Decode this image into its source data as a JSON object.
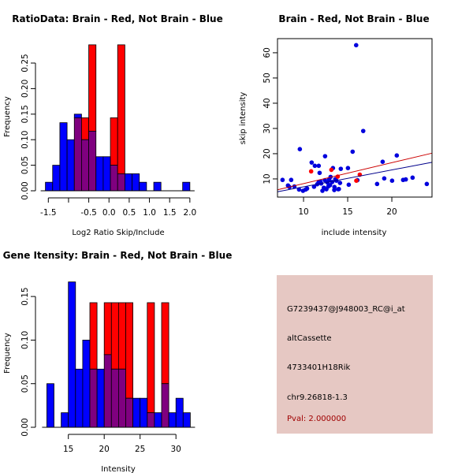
{
  "colors": {
    "brain": "#ff0000",
    "not_brain": "#0000ff",
    "overlap": "#7f007f",
    "pval": "#a00000",
    "panel_bg": "#e6c8c3"
  },
  "chart_data": [
    {
      "type": "bar",
      "id": "ratio-histogram",
      "title": "RatioData: Brain - Red, Not Brain - Blue",
      "xlabel": "Log2 Ratio Skip/Include",
      "ylabel": "Frequency",
      "bin_start": -1.572,
      "bin_width": 0.1786,
      "xlim": [
        -1.572,
        2.0
      ],
      "ylim": [
        0,
        0.286
      ],
      "xticks": [
        -1.5,
        -1.0,
        -0.5,
        0.0,
        0.5,
        1.0,
        1.5,
        2.0
      ],
      "xtick_labels": [
        "-1.5",
        "",
        "-0.5",
        "0.0",
        "0.5",
        "1.0",
        "1.5",
        "2.0"
      ],
      "yticks": [
        0.0,
        0.05,
        0.1,
        0.15,
        0.2,
        0.25
      ],
      "ytick_labels": [
        "0.00",
        "0.05",
        "0.10",
        "0.15",
        "0.20",
        "0.25"
      ],
      "series": [
        {
          "name": "Not Brain",
          "color": "blue",
          "values": [
            0.0167,
            0.05,
            0.1333,
            0.1,
            0.15,
            0.1,
            0.1167,
            0.0667,
            0.0667,
            0.05,
            0.0333,
            0.0333,
            0.0333,
            0.0167,
            0,
            0.0167,
            0,
            0,
            0,
            0.0167
          ]
        },
        {
          "name": "Brain",
          "color": "red",
          "values": [
            0,
            0,
            0,
            0,
            0.1429,
            0.1429,
            0.2857,
            0,
            0,
            0.1429,
            0.2857,
            0,
            0,
            0,
            0,
            0,
            0,
            0,
            0,
            0
          ]
        }
      ],
      "grid": false
    },
    {
      "type": "scatter",
      "id": "intensity-scatter",
      "title": "Brain - Red, Not Brain - Blue",
      "xlabel": "include intensity",
      "ylabel": "skip intensity",
      "xlim": [
        7.05,
        24.55
      ],
      "ylim": [
        2.8,
        65.6
      ],
      "xticks": [
        10,
        15,
        20
      ],
      "yticks": [
        10,
        20,
        30,
        40,
        50,
        60
      ],
      "series": [
        {
          "name": "Not Brain",
          "color": "blue",
          "points": [
            [
              15.96,
              63.0
            ],
            [
              16.76,
              29.0
            ],
            [
              9.58,
              21.8
            ],
            [
              12.44,
              19.0
            ],
            [
              15.56,
              20.8
            ],
            [
              20.56,
              19.3
            ],
            [
              18.96,
              16.8
            ],
            [
              10.92,
              16.5
            ],
            [
              11.28,
              15.2
            ],
            [
              11.72,
              15.2
            ],
            [
              11.82,
              12.4
            ],
            [
              13.33,
              14.3
            ],
            [
              14.22,
              14.0
            ],
            [
              15.03,
              14.3
            ],
            [
              7.62,
              9.6
            ],
            [
              8.6,
              9.6
            ],
            [
              8.24,
              7.4
            ],
            [
              8.96,
              7.0
            ],
            [
              9.49,
              5.8
            ],
            [
              9.94,
              5.3
            ],
            [
              10.24,
              5.8
            ],
            [
              11.19,
              6.9
            ],
            [
              11.55,
              7.9
            ],
            [
              11.72,
              8.75
            ],
            [
              12.14,
              5.3
            ],
            [
              12.59,
              5.9
            ],
            [
              12.41,
              9.5
            ],
            [
              13.06,
              10.8
            ],
            [
              13.24,
              8.75
            ],
            [
              13.48,
              5.6
            ],
            [
              13.93,
              5.9
            ],
            [
              14.13,
              8.4
            ],
            [
              15.12,
              7.7
            ],
            [
              16.1,
              9.5
            ],
            [
              18.33,
              8.0
            ],
            [
              19.14,
              10.2
            ],
            [
              20.03,
              9.3
            ],
            [
              21.28,
              9.6
            ],
            [
              21.58,
              9.8
            ],
            [
              22.35,
              10.5
            ],
            [
              23.96,
              8.0
            ],
            [
              13.72,
              9.3
            ],
            [
              12.8,
              7.0
            ],
            [
              12.0,
              8.2
            ],
            [
              12.3,
              6.5
            ],
            [
              13.0,
              7.5
            ],
            [
              13.5,
              6.8
            ],
            [
              14.0,
              6.0
            ],
            [
              11.9,
              9.0
            ],
            [
              12.9,
              9.8
            ],
            [
              13.6,
              9.9
            ],
            [
              8.4,
              6.8
            ],
            [
              10.4,
              6.2
            ],
            [
              12.7,
              8.6
            ]
          ]
        },
        {
          "name": "Brain",
          "color": "red",
          "points": [
            [
              10.86,
              13.0
            ],
            [
              13.15,
              13.6
            ],
            [
              13.87,
              10.9
            ],
            [
              16.37,
              11.7
            ],
            [
              15.98,
              9.3
            ]
          ]
        }
      ],
      "regression_lines": [
        {
          "name": "Brain fit",
          "color": "#cc0000",
          "from": [
            7.05,
            5.7
          ],
          "to": [
            24.55,
            20.2
          ]
        },
        {
          "name": "Not Brain fit",
          "color": "#00008b",
          "from": [
            7.05,
            4.9
          ],
          "to": [
            24.55,
            16.6
          ]
        }
      ],
      "grid": false
    },
    {
      "type": "bar",
      "id": "gene-intensity-histogram",
      "title": "Gene Itensity: Brain - Red, Not Brain - Blue",
      "xlabel": "Intensity",
      "ylabel": "Frequency",
      "bin_start": 12,
      "bin_width": 1,
      "xlim": [
        12,
        32
      ],
      "ylim": [
        0,
        0.167
      ],
      "xticks": [
        15,
        20,
        25,
        30
      ],
      "xtick_labels": [
        "15",
        "20",
        "25",
        "30"
      ],
      "yticks": [
        0.0,
        0.05,
        0.1,
        0.15
      ],
      "ytick_labels": [
        "0.00",
        "0.05",
        "0.10",
        "0.15"
      ],
      "series": [
        {
          "name": "Not Brain",
          "color": "blue",
          "values": [
            0.05,
            0,
            0.0167,
            0.1667,
            0.0667,
            0.1,
            0.0667,
            0.0667,
            0.0833,
            0.0667,
            0.0667,
            0.0333,
            0.0333,
            0.0333,
            0.0167,
            0.0167,
            0.05,
            0.0167,
            0.0333,
            0.0167
          ]
        },
        {
          "name": "Brain",
          "color": "red",
          "values": [
            0,
            0,
            0,
            0,
            0,
            0,
            0.1429,
            0,
            0.1429,
            0.1429,
            0.1429,
            0.1429,
            0,
            0,
            0.1429,
            0,
            0.1429,
            0,
            0,
            0
          ]
        }
      ],
      "grid": false
    }
  ],
  "info_panel": {
    "probe_id": "G7239437@J948003_RC@i_at",
    "event_type": "altCassette",
    "gene": "4733401H18Rik",
    "location": "chr9.26818-1.3",
    "pval": "Pval: 2.000000"
  }
}
